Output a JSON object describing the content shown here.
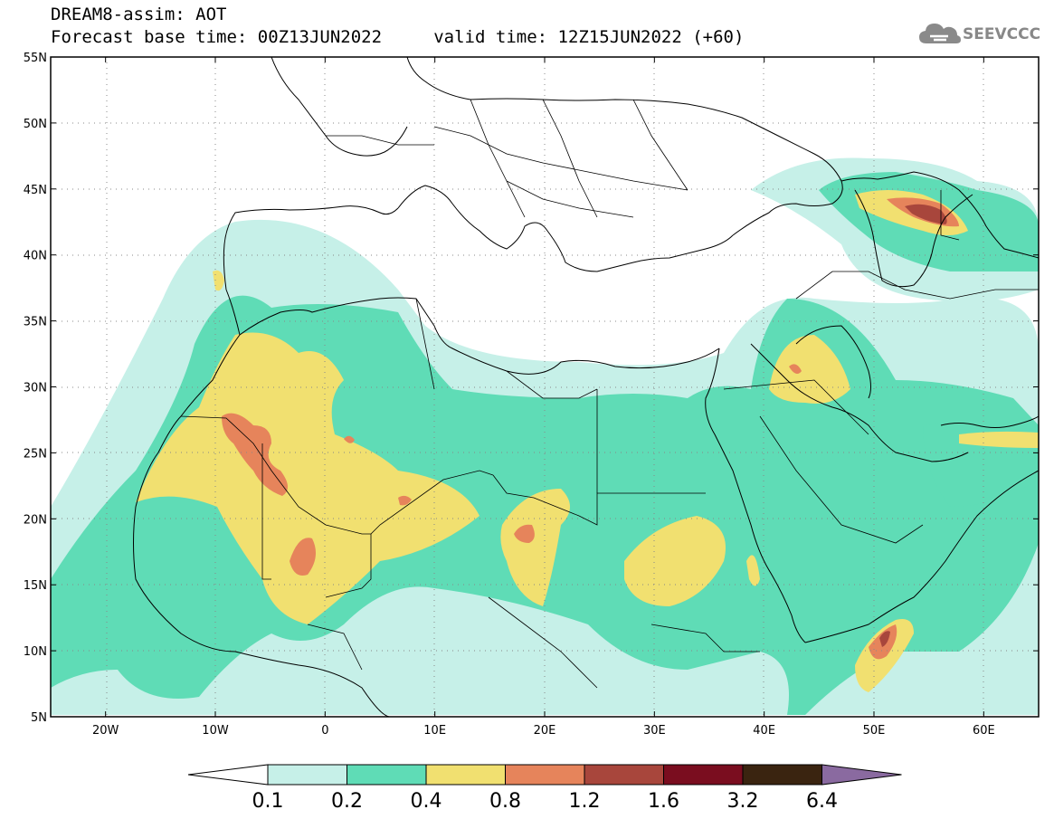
{
  "title": {
    "line1": "DREAM8-assim: AOT",
    "line2": "Forecast base time: 00Z13JUN2022     valid time: 12Z15JUN2022 (+60)"
  },
  "logo": {
    "text": "SEEVCCC",
    "icon": "cloud-icon"
  },
  "axes": {
    "lon_range": [
      -25,
      65
    ],
    "lat_range": [
      5,
      55
    ],
    "lon_ticks": [
      "20W",
      "10W",
      "0",
      "10E",
      "20E",
      "30E",
      "40E",
      "50E",
      "60E"
    ],
    "lat_ticks": [
      "55N",
      "50N",
      "45N",
      "40N",
      "35N",
      "30N",
      "25N",
      "20N",
      "15N",
      "10N",
      "5N"
    ]
  },
  "colorbar": {
    "labels": [
      "0.1",
      "0.2",
      "0.4",
      "0.8",
      "1.2",
      "1.6",
      "3.2",
      "6.4"
    ],
    "colors": [
      "#c6f0e8",
      "#5fdcb6",
      "#f1e070",
      "#e6845b",
      "#a8463c",
      "#7a0d1f",
      "#3a2410",
      "#8a6aa0"
    ],
    "under_color": "#ffffff"
  },
  "colors": {
    "coast": "#000000",
    "grid": "#888888"
  }
}
